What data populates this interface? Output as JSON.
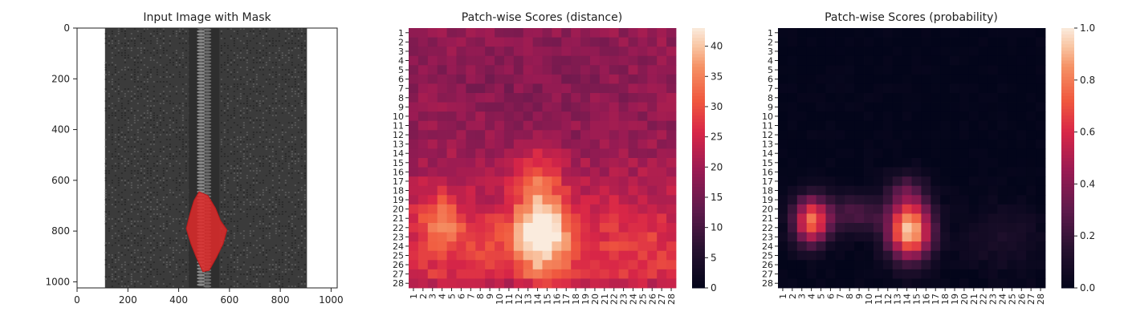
{
  "chart_data": [
    {
      "type": "image",
      "title": "Input Image with Mask",
      "xlim": [
        0,
        1024
      ],
      "ylim": [
        1024,
        0
      ],
      "xticks": [
        0,
        200,
        400,
        600,
        800,
        1000
      ],
      "yticks": [
        0,
        200,
        400,
        600,
        800,
        1000
      ],
      "image": {
        "background_color": "#ffffff",
        "fabric_color": "#3b3b3b",
        "fabric_x": [
          110,
          905
        ],
        "zipper_x": [
          440,
          560
        ],
        "mask_color": "#e02a2a",
        "mask_outline": [
          [
            480,
            645
          ],
          [
            515,
            660
          ],
          [
            545,
            710
          ],
          [
            565,
            760
          ],
          [
            590,
            795
          ],
          [
            575,
            850
          ],
          [
            548,
            905
          ],
          [
            520,
            955
          ],
          [
            495,
            960
          ],
          [
            470,
            905
          ],
          [
            448,
            850
          ],
          [
            430,
            790
          ],
          [
            445,
            730
          ],
          [
            460,
            680
          ]
        ]
      }
    },
    {
      "type": "heatmap",
      "title": "Patch-wise Scores (distance)",
      "rows": 28,
      "cols": 28,
      "row_labels": [
        "1",
        "2",
        "3",
        "4",
        "5",
        "6",
        "7",
        "8",
        "9",
        "10",
        "11",
        "12",
        "13",
        "14",
        "15",
        "16",
        "17",
        "18",
        "19",
        "20",
        "21",
        "22",
        "23",
        "24",
        "25",
        "26",
        "27",
        "28"
      ],
      "col_labels": [
        "1",
        "2",
        "3",
        "4",
        "5",
        "6",
        "7",
        "8",
        "9",
        "10",
        "11",
        "12",
        "13",
        "14",
        "15",
        "16",
        "17",
        "18",
        "19",
        "20",
        "21",
        "22",
        "23",
        "24",
        "25",
        "26",
        "27",
        "28"
      ],
      "colorbar": {
        "min": 0,
        "max": 43,
        "ticks": [
          0,
          5,
          10,
          15,
          20,
          25,
          30,
          35,
          40
        ]
      },
      "colormap": "rocket",
      "model": {
        "base": 19,
        "row_gradient": {
          "start_row": 12,
          "per_row": 0.45
        },
        "blobs": [
          {
            "row": 22.5,
            "col": 14.5,
            "sr": 3.0,
            "sc": 2.0,
            "amp": 24
          },
          {
            "row": 16.5,
            "col": 14.0,
            "sr": 2.2,
            "sc": 1.6,
            "amp": 8
          },
          {
            "row": 21.5,
            "col": 3.8,
            "sr": 2.4,
            "sc": 1.6,
            "amp": 12
          },
          {
            "row": 23.0,
            "col": 9.0,
            "sr": 2.0,
            "sc": 2.6,
            "amp": 5
          },
          {
            "row": 23.0,
            "col": 24.0,
            "sr": 3.0,
            "sc": 4.0,
            "amp": 4
          },
          {
            "row": 6.0,
            "col": 14.0,
            "sr": 4.0,
            "sc": 8.0,
            "amp": -2
          }
        ],
        "bottom_row_amp": -4
      }
    },
    {
      "type": "heatmap",
      "title": "Patch-wise Scores (probability)",
      "rows": 28,
      "cols": 28,
      "row_labels": [
        "1",
        "2",
        "3",
        "4",
        "5",
        "6",
        "7",
        "8",
        "9",
        "10",
        "11",
        "12",
        "13",
        "14",
        "15",
        "16",
        "17",
        "18",
        "19",
        "20",
        "21",
        "22",
        "23",
        "24",
        "25",
        "26",
        "27",
        "28"
      ],
      "col_labels": [
        "1",
        "2",
        "3",
        "4",
        "5",
        "6",
        "7",
        "8",
        "9",
        "10",
        "11",
        "12",
        "13",
        "14",
        "15",
        "16",
        "17",
        "18",
        "19",
        "20",
        "21",
        "22",
        "23",
        "24",
        "25",
        "26",
        "27",
        "28"
      ],
      "colorbar": {
        "min": 0.0,
        "max": 1.0,
        "ticks": [
          0.0,
          0.2,
          0.4,
          0.6,
          0.8,
          1.0
        ],
        "tick_labels": [
          "0.0",
          "0.2",
          "0.4",
          "0.6",
          "0.8",
          "1.0"
        ]
      },
      "colormap": "rocket",
      "model": {
        "base": 0.0,
        "blobs": [
          {
            "row": 22.3,
            "col": 14.3,
            "sr": 2.2,
            "sc": 1.6,
            "amp": 0.95
          },
          {
            "row": 21.3,
            "col": 4.0,
            "sr": 1.8,
            "sc": 1.3,
            "amp": 0.75
          },
          {
            "row": 20.5,
            "col": 8.5,
            "sr": 1.5,
            "sc": 2.2,
            "amp": 0.25
          },
          {
            "row": 18.0,
            "col": 14.0,
            "sr": 1.5,
            "sc": 1.5,
            "amp": 0.2
          },
          {
            "row": 23.0,
            "col": 24.0,
            "sr": 2.5,
            "sc": 3.0,
            "amp": 0.1
          }
        ]
      }
    }
  ]
}
